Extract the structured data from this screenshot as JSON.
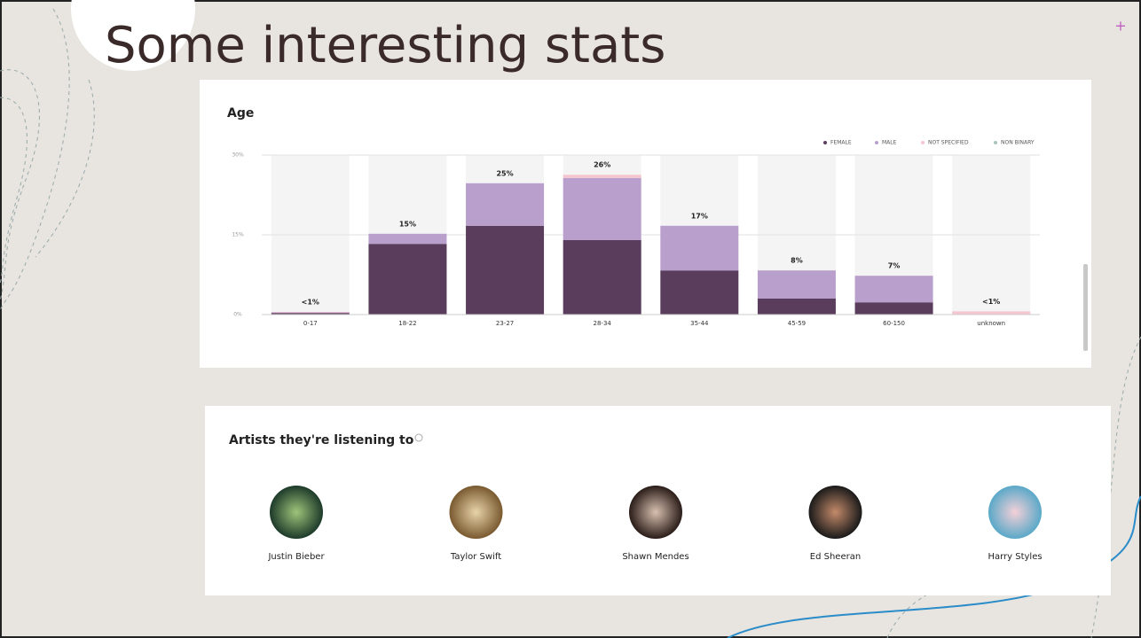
{
  "title": "Some interesting stats",
  "chart_data": {
    "type": "stacked_bar",
    "title": "Age",
    "categories": [
      "0-17",
      "18-22",
      "23-27",
      "28-34",
      "35-44",
      "45-59",
      "60-150",
      "unknown"
    ],
    "series": [
      {
        "name": "FEMALE",
        "color": "#5a3d5c",
        "values": [
          0.3,
          13.3,
          16.7,
          14,
          8.3,
          3,
          2.3,
          0
        ]
      },
      {
        "name": "MALE",
        "color": "#b9a0cc",
        "values": [
          0.1,
          1.9,
          8,
          11.7,
          8.4,
          5.3,
          5,
          0
        ]
      },
      {
        "name": "NOT SPECIFIED",
        "color": "#f6c6d0",
        "values": [
          0.1,
          0,
          0,
          0.6,
          0,
          0,
          0,
          0.6
        ]
      },
      {
        "name": "NON BINARY",
        "color": "#a9c4bd",
        "values": [
          0,
          0,
          0,
          0,
          0,
          0,
          0,
          0
        ]
      }
    ],
    "total_labels": [
      "<1%",
      "15%",
      "25%",
      "26%",
      "17%",
      "8%",
      "7%",
      "<1%"
    ],
    "ylim": [
      0,
      30
    ],
    "yticks": [
      {
        "value": 0,
        "label": "0%"
      },
      {
        "value": 15,
        "label": "15%"
      },
      {
        "value": 30,
        "label": "30%"
      }
    ],
    "grid": true,
    "legend": "top-right"
  },
  "artists": {
    "heading": "Artists they're listening to",
    "names": [
      "Justin Bieber",
      "Taylor Swift",
      "Shawn Mendes",
      "Ed Sheeran",
      "Harry Styles"
    ]
  }
}
